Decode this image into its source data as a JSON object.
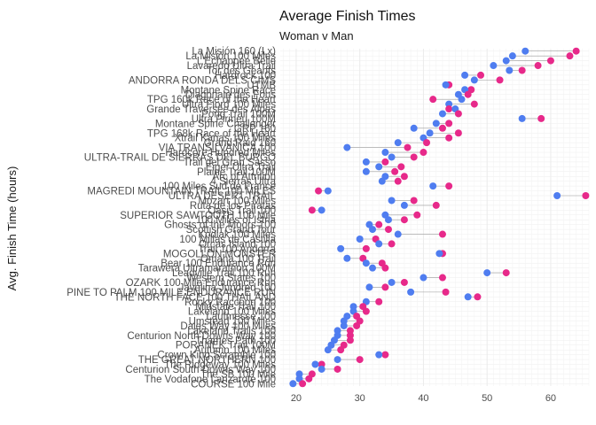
{
  "chart_data": {
    "type": "dumbbell",
    "title": "Average Finish Times",
    "subtitle": "Woman v Man",
    "xlabel": "",
    "ylabel": "Avg. Finish Time (hours)",
    "xlim": [
      17.5,
      66
    ],
    "xticks": [
      20,
      30,
      40,
      50,
      60
    ],
    "grid": true,
    "series": [
      {
        "key": "women",
        "color": "#e7298a"
      },
      {
        "key": "men",
        "color": "#4f7df0"
      }
    ],
    "races": [
      {
        "name": "La Misión 160 (Lx)",
        "women": 64.0,
        "men": 56.0
      },
      {
        "name": "La Misión 100 Miles",
        "women": 63.0,
        "men": 54.0
      },
      {
        "name": "L'Echappée Belle",
        "women": 60.0,
        "men": 53.0
      },
      {
        "name": "Lavaredo Ultra Trail",
        "women": 58.0,
        "men": 51.0
      },
      {
        "name": "Tor des Géants",
        "women": 55.5,
        "men": 53.5
      },
      {
        "name": "Hardrock 100",
        "women": 49.0,
        "men": 46.5
      },
      {
        "name": "ANDORRA RONDA DELS CIMS",
        "women": 52.0,
        "men": 48.0
      },
      {
        "name": "UTMB",
        "women": 44.0,
        "men": 43.5
      },
      {
        "name": "Montane Spine Race",
        "women": 47.5,
        "men": 46.5
      },
      {
        "name": "Diagonale des Fous",
        "women": 47.0,
        "men": 45.5
      },
      {
        "name": "TPG 160k Race of the Heart",
        "women": 41.5,
        "men": 46.0
      },
      {
        "name": "Ultra Fiord 100 Miles",
        "women": 48.0,
        "men": 44.0
      },
      {
        "name": "Grande Traversée des Alpes",
        "women": 44.0,
        "men": 45.0
      },
      {
        "name": "Pong Trail 100M",
        "women": 45.5,
        "men": 43.0
      },
      {
        "name": "Ultra Pirineu 100M",
        "women": 58.5,
        "men": 55.5
      },
      {
        "name": "Montane Spine Challenger",
        "women": 44.0,
        "men": 42.0
      },
      {
        "name": "GRP 160",
        "women": 43.0,
        "men": 38.5
      },
      {
        "name": "TPG 168k Race of the Heart",
        "women": 45.5,
        "men": 41.0
      },
      {
        "name": "Xtrail Kanas 100 Miles",
        "women": 44.0,
        "men": 40.0
      },
      {
        "name": "Grand Raid 160",
        "women": 40.5,
        "men": 36.0
      },
      {
        "name": "VIA TRANSILVANICA 100",
        "women": 37.5,
        "men": 28.0
      },
      {
        "name": "Hardcore Hundred Miles",
        "women": 40.0,
        "men": 34.0
      },
      {
        "name": "ULTRA-TRAIL DE SIERRAS DEL BURGO",
        "women": 38.5,
        "men": 35.0
      },
      {
        "name": "Trail del Gran Sasso",
        "women": 34.0,
        "men": 31.0
      },
      {
        "name": "Eiger Ultra Trail",
        "women": 36.5,
        "men": 33.0
      },
      {
        "name": "Plaine Trail 100M",
        "women": 35.5,
        "men": 31.0
      },
      {
        "name": "Arc of Attrition",
        "women": 37.0,
        "men": 34.0
      },
      {
        "name": "4 Sierras Ultra",
        "women": 36.0,
        "men": 33.5
      },
      {
        "name": "100 Miles Sud de France",
        "women": 44.0,
        "men": 41.5
      },
      {
        "name": "MAGREDI MOUNTAIN TRAIL 100 MILES",
        "women": 23.5,
        "men": 25.0
      },
      {
        "name": "ULTRA DESERT TRAIL",
        "women": 65.5,
        "men": 61.0
      },
      {
        "name": "Mozart 100 Miles",
        "women": 38.5,
        "men": 35.0
      },
      {
        "name": "Ruta de los Piratas",
        "women": 42.0,
        "men": 37.0
      },
      {
        "name": "Oasis Trail 100",
        "women": 22.5,
        "men": 24.0
      },
      {
        "name": "SUPERIOR SAWTOOTH 100 Mile",
        "women": 39.0,
        "men": 34.0
      },
      {
        "name": "100 Miles of Istria",
        "women": 37.0,
        "men": 34.5
      },
      {
        "name": "Ghosts of the Moors 100",
        "women": 33.0,
        "men": 31.5
      },
      {
        "name": "Scottish Grand Tour",
        "women": 34.5,
        "men": 32.0
      },
      {
        "name": "Kodiak 100 Miles",
        "women": 43.0,
        "men": 36.0
      },
      {
        "name": "100 Millas de Castilla",
        "women": 32.5,
        "men": 30.0
      },
      {
        "name": "Orcas Island 100",
        "women": 35.0,
        "men": 33.0
      },
      {
        "name": "Trail 100 Andorra",
        "women": 31.0,
        "men": 27.0
      },
      {
        "name": "MOGOLLON MONSTER",
        "women": 43.0,
        "men": 42.5
      },
      {
        "name": "Omaha 100 Trail",
        "women": 30.5,
        "men": 28.0
      },
      {
        "name": "Bear 100 Endurance Run",
        "women": 33.5,
        "men": 31.0
      },
      {
        "name": "Tarawera Ultramarathon 100M",
        "women": 34.0,
        "men": 32.0
      },
      {
        "name": "Leadville Trail 100 Run",
        "women": 53.0,
        "men": 50.0
      },
      {
        "name": "Western States 100",
        "women": 43.0,
        "men": 40.0
      },
      {
        "name": "OZARK 100 Mile Endurance Run",
        "women": 37.0,
        "men": 35.0
      },
      {
        "name": "Javelina Jundred 100",
        "women": 34.0,
        "men": 31.5
      },
      {
        "name": "PINE TO PALM 100 MILE ENDURANCE RUN",
        "women": 43.5,
        "men": 38.0
      },
      {
        "name": "THE NORTH FACE 100 THAILAND",
        "women": 48.5,
        "men": 47.0
      },
      {
        "name": "Rocky Raccoon 100",
        "women": 33.0,
        "men": 31.0
      },
      {
        "name": "Midstate Trail 100",
        "women": 30.5,
        "men": 29.0
      },
      {
        "name": "Lakeland 100 Miles",
        "women": 31.0,
        "men": 29.0
      },
      {
        "name": "Laufmesse 100",
        "women": 29.5,
        "men": 28.0
      },
      {
        "name": "Umstead 100 Miles",
        "women": 30.0,
        "men": 27.5
      },
      {
        "name": "Dales Way 100 Miles",
        "women": 29.5,
        "men": 27.5
      },
      {
        "name": "Lakeland Trails 100",
        "women": 28.5,
        "men": 26.5
      },
      {
        "name": "Centurion North Downs Way 100",
        "women": 28.5,
        "men": 26.5
      },
      {
        "name": "Thames Path 100",
        "women": 28.5,
        "men": 26.0
      },
      {
        "name": "PORANEK Trail 100M",
        "women": 27.5,
        "men": 25.5
      },
      {
        "name": "Autumn 100 Miles",
        "women": 27.0,
        "men": 25.0
      },
      {
        "name": "Crown King Scramble 100",
        "women": 34.0,
        "men": 33.0
      },
      {
        "name": "THE GREAT NORTHERN 100",
        "women": 30.0,
        "men": 26.5
      },
      {
        "name": "The Ridgeway 100 Miles",
        "women": 24.0,
        "men": 23.0
      },
      {
        "name": "Centurion South Downs Way 100",
        "women": 26.5,
        "men": 24.0
      },
      {
        "name": "The SB 100 Mile",
        "women": 22.5,
        "men": 20.5
      },
      {
        "name": "The Vodafone Lanzarote 100",
        "women": 22.0,
        "men": 20.5
      },
      {
        "name": "COURSE 100 Mile",
        "women": 21.0,
        "men": 19.5
      }
    ]
  }
}
